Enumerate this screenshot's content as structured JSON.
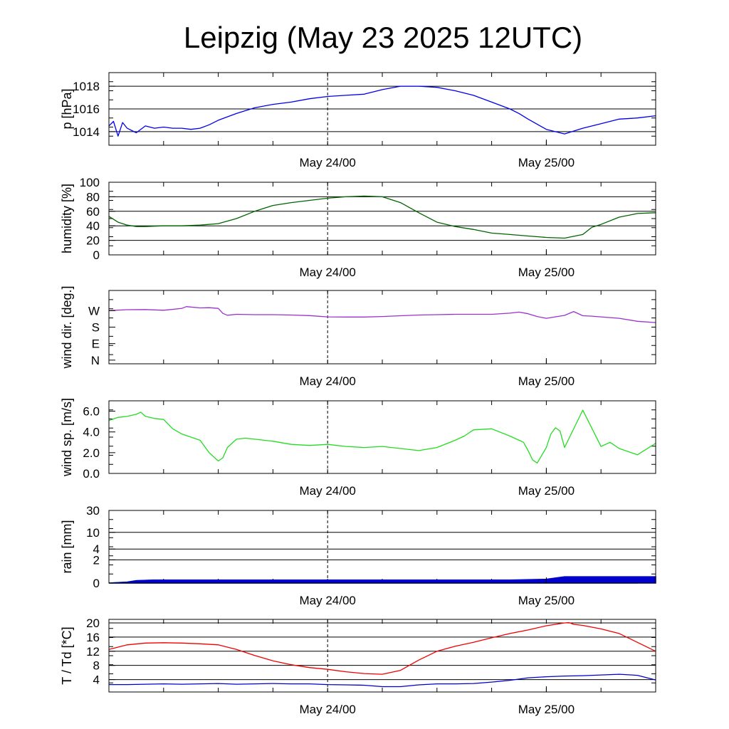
{
  "title": "Leipzig (May 23 2025 12UTC)",
  "chart_data": [
    {
      "type": "line",
      "ylabel": "p [hPa]",
      "x_ticks": [
        "May 24/00",
        "May 25/00"
      ],
      "ylim": [
        1012.8,
        1019.2
      ],
      "yticks": [
        {
          "v": 1014,
          "label": "1014"
        },
        {
          "v": 1016,
          "label": "1016"
        },
        {
          "v": 1018,
          "label": "1018"
        }
      ],
      "grid": true,
      "series": [
        {
          "color": "#0000ee",
          "x": [
            0,
            0.5,
            1,
            1.5,
            2,
            3,
            4,
            5,
            6,
            7,
            8,
            9,
            10,
            11,
            12,
            14,
            16,
            18,
            20,
            22,
            24,
            26,
            28,
            30,
            32,
            34,
            36,
            38,
            40,
            42,
            44,
            45,
            46,
            48,
            50,
            52,
            54,
            56,
            58,
            60
          ],
          "y": [
            1014.5,
            1014.9,
            1013.6,
            1014.8,
            1014.3,
            1013.9,
            1014.5,
            1014.3,
            1014.4,
            1014.3,
            1014.3,
            1014.2,
            1014.3,
            1014.6,
            1015.0,
            1015.6,
            1016.1,
            1016.4,
            1016.6,
            1016.9,
            1017.1,
            1017.2,
            1017.3,
            1017.7,
            1018.0,
            1018.0,
            1017.9,
            1017.6,
            1017.2,
            1016.6,
            1016.0,
            1015.6,
            1015.1,
            1014.2,
            1013.8,
            1014.3,
            1014.7,
            1015.1,
            1015.2,
            1015.4
          ]
        }
      ]
    },
    {
      "type": "line",
      "ylabel": "humidity [%]",
      "x_ticks": [
        "May 24/00",
        "May 25/00"
      ],
      "ylim": [
        0,
        100
      ],
      "yticks": [
        {
          "v": 0,
          "label": "0"
        },
        {
          "v": 20,
          "label": "20"
        },
        {
          "v": 40,
          "label": "40"
        },
        {
          "v": 60,
          "label": "60"
        },
        {
          "v": 80,
          "label": "80"
        },
        {
          "v": 100,
          "label": "100"
        }
      ],
      "grid": true,
      "series": [
        {
          "color": "#006400",
          "x": [
            0,
            1,
            2,
            3,
            4,
            6,
            8,
            10,
            12,
            14,
            16,
            18,
            20,
            22,
            24,
            26,
            28,
            30,
            32,
            34,
            36,
            38,
            40,
            42,
            44,
            46,
            48,
            50,
            52,
            53,
            54,
            56,
            58,
            60
          ],
          "y": [
            53,
            45,
            41,
            39,
            39,
            40,
            40,
            41,
            43,
            50,
            60,
            68,
            72,
            75,
            78,
            80,
            81,
            80,
            72,
            58,
            45,
            39,
            35,
            30,
            28,
            26,
            24,
            23,
            28,
            38,
            42,
            52,
            57,
            58
          ]
        }
      ]
    },
    {
      "type": "line",
      "ylabel": "wind dir. [deg.]",
      "x_ticks": [
        "May 24/00",
        "May 25/00"
      ],
      "ylim": [
        -20,
        380
      ],
      "yticks": [
        {
          "v": 0,
          "label": "N"
        },
        {
          "v": 90,
          "label": "E"
        },
        {
          "v": 180,
          "label": "S"
        },
        {
          "v": 270,
          "label": "W"
        }
      ],
      "grid": false,
      "series": [
        {
          "color": "#9932cc",
          "x": [
            0,
            2,
            4,
            6,
            8,
            8.5,
            10,
            11,
            12,
            12.5,
            13,
            14,
            16,
            18,
            20,
            22,
            24,
            26,
            28,
            30,
            32,
            34,
            36,
            38,
            40,
            42,
            44,
            45,
            46,
            47,
            48,
            50,
            51,
            52,
            53,
            54,
            56,
            58,
            60
          ],
          "y": [
            270,
            275,
            276,
            272,
            282,
            292,
            285,
            286,
            282,
            255,
            245,
            250,
            248,
            248,
            246,
            243,
            236,
            235,
            235,
            238,
            242,
            246,
            248,
            250,
            250,
            250,
            256,
            262,
            253,
            238,
            228,
            244,
            265,
            242,
            240,
            236,
            228,
            212,
            205
          ]
        }
      ]
    },
    {
      "type": "line",
      "ylabel": "wind sp. [m/s]",
      "x_ticks": [
        "May 24/00",
        "May 25/00"
      ],
      "ylim": [
        0,
        7
      ],
      "yticks": [
        {
          "v": 0,
          "label": "0.0"
        },
        {
          "v": 2,
          "label": "2.0"
        },
        {
          "v": 4,
          "label": "4.0"
        },
        {
          "v": 6,
          "label": "6.0"
        }
      ],
      "grid": false,
      "series": [
        {
          "color": "#22dd22",
          "x": [
            0,
            1,
            2,
            3,
            3.5,
            4,
            5,
            6,
            7,
            8,
            9,
            10,
            11,
            12,
            12.5,
            13,
            14,
            15,
            16,
            18,
            20,
            22,
            24,
            26,
            28,
            30,
            32,
            34,
            36,
            38,
            39,
            40,
            42,
            44,
            45,
            45.5,
            46,
            46.5,
            47,
            48,
            48.5,
            49,
            49.5,
            50,
            52,
            54,
            55,
            56,
            58,
            60
          ],
          "y": [
            5.1,
            5.4,
            5.5,
            5.7,
            5.9,
            5.5,
            5.3,
            5.2,
            4.3,
            3.8,
            3.5,
            3.2,
            2.0,
            1.2,
            1.5,
            2.5,
            3.3,
            3.4,
            3.3,
            3.1,
            2.8,
            2.7,
            2.8,
            2.6,
            2.5,
            2.6,
            2.4,
            2.2,
            2.5,
            3.2,
            3.6,
            4.2,
            4.3,
            3.6,
            3.2,
            3.0,
            2.2,
            1.3,
            1.0,
            2.5,
            3.8,
            4.4,
            4.1,
            2.5,
            6.1,
            2.6,
            3.0,
            2.4,
            1.8,
            2.9
          ]
        }
      ]
    },
    {
      "type": "area",
      "ylabel": "rain [mm]",
      "x_ticks": [
        "May 24/00",
        "May 25/00"
      ],
      "ylim": [
        0,
        30
      ],
      "yticks": [
        {
          "v": 0,
          "label": "0"
        },
        {
          "v": 2,
          "label": "2"
        },
        {
          "v": 4,
          "label": "4"
        },
        {
          "v": 10,
          "label": "10"
        },
        {
          "v": 30,
          "label": "30"
        }
      ],
      "grid": true,
      "series": [
        {
          "color": "#22aa22",
          "x": [
            0,
            2,
            3,
            5,
            7,
            58
          ],
          "y": [
            0,
            0.05,
            0.12,
            0.15,
            0.15,
            0.15
          ]
        },
        {
          "color": "#0000cc",
          "x": [
            0,
            2,
            3,
            5,
            7,
            44,
            48,
            50,
            60
          ],
          "y": [
            0,
            0.05,
            0.12,
            0.15,
            0.15,
            0.15,
            0.2,
            0.35,
            0.35
          ]
        }
      ]
    },
    {
      "type": "line",
      "ylabel": "T / Td [*C]",
      "x_ticks": [
        "May 24/00",
        "May 25/00"
      ],
      "ylim": [
        0.5,
        21
      ],
      "yticks": [
        {
          "v": 4,
          "label": "4"
        },
        {
          "v": 8,
          "label": "8"
        },
        {
          "v": 12,
          "label": "12"
        },
        {
          "v": 16,
          "label": "16"
        },
        {
          "v": 20,
          "label": "20"
        }
      ],
      "grid": true,
      "series": [
        {
          "color": "#ee0000",
          "x": [
            0,
            2,
            4,
            6,
            8,
            10,
            12,
            14,
            16,
            18,
            20,
            22,
            24,
            26,
            28,
            30,
            32,
            34,
            36,
            38,
            40,
            42,
            44,
            46,
            48,
            50,
            50.5,
            51,
            52,
            54,
            56,
            58,
            60
          ],
          "y": [
            12.5,
            13.8,
            14.3,
            14.4,
            14.3,
            14.1,
            13.8,
            12.5,
            10.8,
            9.3,
            8.2,
            7.4,
            6.9,
            6.2,
            5.7,
            5.5,
            6.6,
            9.5,
            12.0,
            13.4,
            14.5,
            15.8,
            17.0,
            18.0,
            19.2,
            20.0,
            20.1,
            19.6,
            19.3,
            18.3,
            17.0,
            14.5,
            12.0
          ]
        },
        {
          "color": "#0000cc",
          "x": [
            0,
            2,
            4,
            6,
            8,
            10,
            12,
            14,
            16,
            18,
            20,
            22,
            24,
            26,
            28,
            30,
            32,
            34,
            36,
            38,
            40,
            42,
            44,
            46,
            48,
            50,
            52,
            54,
            56,
            58,
            60
          ],
          "y": [
            2.6,
            2.6,
            2.7,
            2.8,
            2.7,
            2.8,
            2.9,
            2.7,
            2.8,
            2.9,
            2.8,
            2.8,
            2.6,
            2.5,
            2.4,
            2.0,
            2.0,
            2.5,
            2.8,
            2.8,
            2.9,
            3.3,
            3.8,
            4.5,
            4.8,
            5.0,
            5.1,
            5.3,
            5.5,
            5.2,
            3.9
          ]
        }
      ]
    }
  ]
}
